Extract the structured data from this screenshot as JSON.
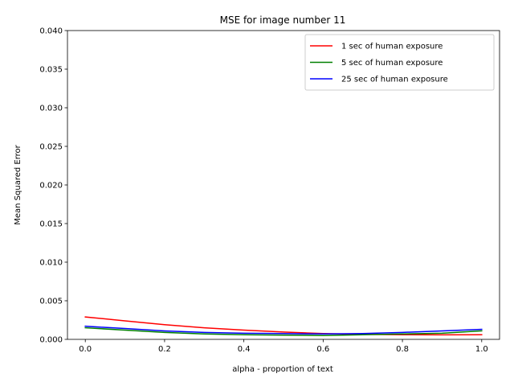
{
  "chart_data": {
    "type": "line",
    "title": "MSE for image number 11",
    "xlabel": "alpha - proportion of text",
    "ylabel": "Mean Squared Error",
    "xlim": [
      -0.045,
      1.045
    ],
    "ylim": [
      0.0,
      0.04
    ],
    "xticks": [
      "0.0",
      "0.2",
      "0.4",
      "0.6",
      "0.8",
      "1.0"
    ],
    "xtick_values": [
      0.0,
      0.2,
      0.4,
      0.6,
      0.8,
      1.0
    ],
    "yticks": [
      "0.000",
      "0.005",
      "0.010",
      "0.015",
      "0.020",
      "0.025",
      "0.030",
      "0.035",
      "0.040"
    ],
    "ytick_values": [
      0.0,
      0.005,
      0.01,
      0.015,
      0.02,
      0.025,
      0.03,
      0.035,
      0.04
    ],
    "grid": false,
    "legend_position": "top-right",
    "x": [
      0.0,
      0.1,
      0.2,
      0.3,
      0.4,
      0.5,
      0.6,
      0.7,
      0.8,
      0.9,
      1.0
    ],
    "series": [
      {
        "name": "1 sec of human exposure",
        "color": "#ff0000",
        "values": [
          0.0029,
          0.0024,
          0.0019,
          0.0015,
          0.0012,
          0.00095,
          0.00075,
          0.00065,
          0.0006,
          0.00058,
          0.0006
        ]
      },
      {
        "name": "5 sec of human exposure",
        "color": "#008000",
        "values": [
          0.0015,
          0.0012,
          0.0009,
          0.0007,
          0.0006,
          0.00055,
          0.0005,
          0.0006,
          0.0007,
          0.0008,
          0.0011
        ]
      },
      {
        "name": "25 sec of human exposure",
        "color": "#0000ff",
        "values": [
          0.0017,
          0.0014,
          0.0011,
          0.0009,
          0.0008,
          0.00075,
          0.0007,
          0.00075,
          0.0009,
          0.0011,
          0.0013
        ]
      }
    ]
  }
}
